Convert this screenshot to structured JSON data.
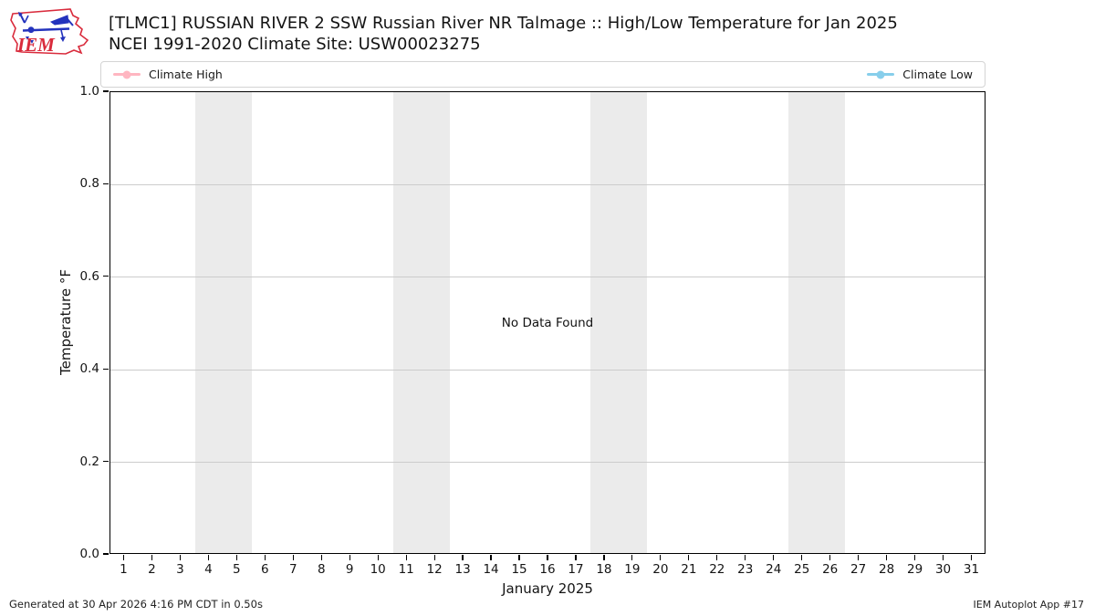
{
  "header": {
    "title_line1": "[TLMC1] RUSSIAN RIVER 2 SSW Russian River NR Talmage :: High/Low Temperature for Jan 2025",
    "title_line2": "NCEI 1991-2020 Climate Site: USW00023275",
    "logo_text": "IEM"
  },
  "legend": {
    "items": [
      {
        "label": "Climate High",
        "color": "#ffb6c1"
      },
      {
        "label": "Climate Low",
        "color": "#87ceeb"
      }
    ]
  },
  "chart_data": {
    "type": "line",
    "title": "[TLMC1] RUSSIAN RIVER 2 SSW Russian River NR Talmage :: High/Low Temperature for Jan 2025",
    "subtitle": "NCEI 1991-2020 Climate Site: USW00023275",
    "xlabel": "January 2025",
    "ylabel": "Temperature °F",
    "x_ticks": [
      1,
      2,
      3,
      4,
      5,
      6,
      7,
      8,
      9,
      10,
      11,
      12,
      13,
      14,
      15,
      16,
      17,
      18,
      19,
      20,
      21,
      22,
      23,
      24,
      25,
      26,
      27,
      28,
      29,
      30,
      31
    ],
    "xlim": [
      0.5,
      31.5
    ],
    "y_ticks": [
      0.0,
      0.2,
      0.4,
      0.6,
      0.8,
      1.0
    ],
    "ylim": [
      0.0,
      1.0
    ],
    "grid": "horizontal",
    "legend_position": "top",
    "no_data_text": "No Data Found",
    "weekend_bands_days": [
      [
        3.5,
        5.5
      ],
      [
        10.5,
        12.5
      ],
      [
        17.5,
        19.5
      ],
      [
        24.5,
        26.5
      ]
    ],
    "band_color": "#ebebeb",
    "grid_color": "#cccccc",
    "series": [
      {
        "name": "Climate High",
        "color": "#ffb6c1",
        "values": []
      },
      {
        "name": "Climate Low",
        "color": "#87ceeb",
        "values": []
      }
    ]
  },
  "footer": {
    "generated": "Generated at 30 Apr 2026 4:16 PM CDT in 0.50s",
    "app": "IEM Autoplot App #17"
  },
  "logo_colors": {
    "red": "#d92b3c",
    "blue": "#2333bd"
  }
}
